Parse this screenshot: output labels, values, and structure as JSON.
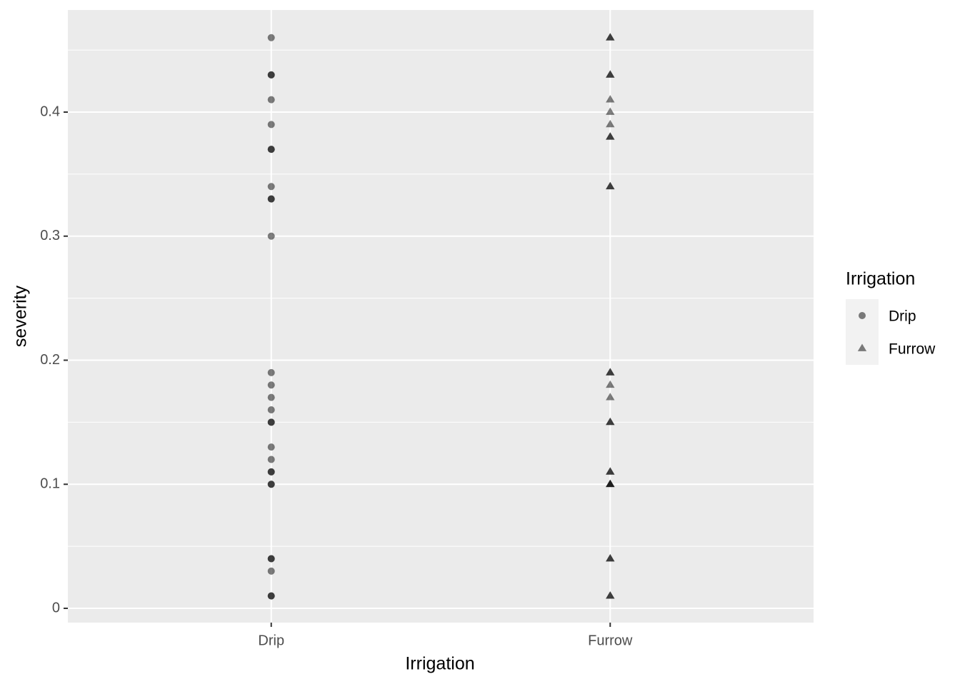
{
  "chart_data": {
    "type": "scatter",
    "x_label": "Irrigation",
    "y_label": "severity",
    "categories": [
      "Drip",
      "Furrow"
    ],
    "legend_title": "Irrigation",
    "legend_position": "right",
    "ylim": [
      -0.0115,
      0.4823
    ],
    "yticks": [
      0,
      0.1,
      0.2,
      0.3,
      0.4
    ],
    "minor_yticks": [
      0.05,
      0.15,
      0.25,
      0.35,
      0.45
    ],
    "grid": true,
    "opacity": 0.5,
    "series": [
      {
        "name": "Drip",
        "shape": "circle",
        "color": "#000000",
        "values": [
          0.46,
          0.43,
          0.43,
          0.41,
          0.39,
          0.37,
          0.37,
          0.34,
          0.33,
          0.33,
          0.3,
          0.19,
          0.18,
          0.17,
          0.16,
          0.15,
          0.15,
          0.13,
          0.12,
          0.11,
          0.11,
          0.1,
          0.1,
          0.04,
          0.04,
          0.03,
          0.01,
          0.01
        ]
      },
      {
        "name": "Furrow",
        "shape": "triangle",
        "color": "#000000",
        "values": [
          0.46,
          0.46,
          0.43,
          0.43,
          0.41,
          0.4,
          0.39,
          0.38,
          0.38,
          0.34,
          0.34,
          0.19,
          0.19,
          0.18,
          0.17,
          0.15,
          0.15,
          0.11,
          0.11,
          0.1,
          0.1,
          0.1,
          0.04,
          0.04,
          0.01,
          0.01
        ]
      }
    ]
  }
}
